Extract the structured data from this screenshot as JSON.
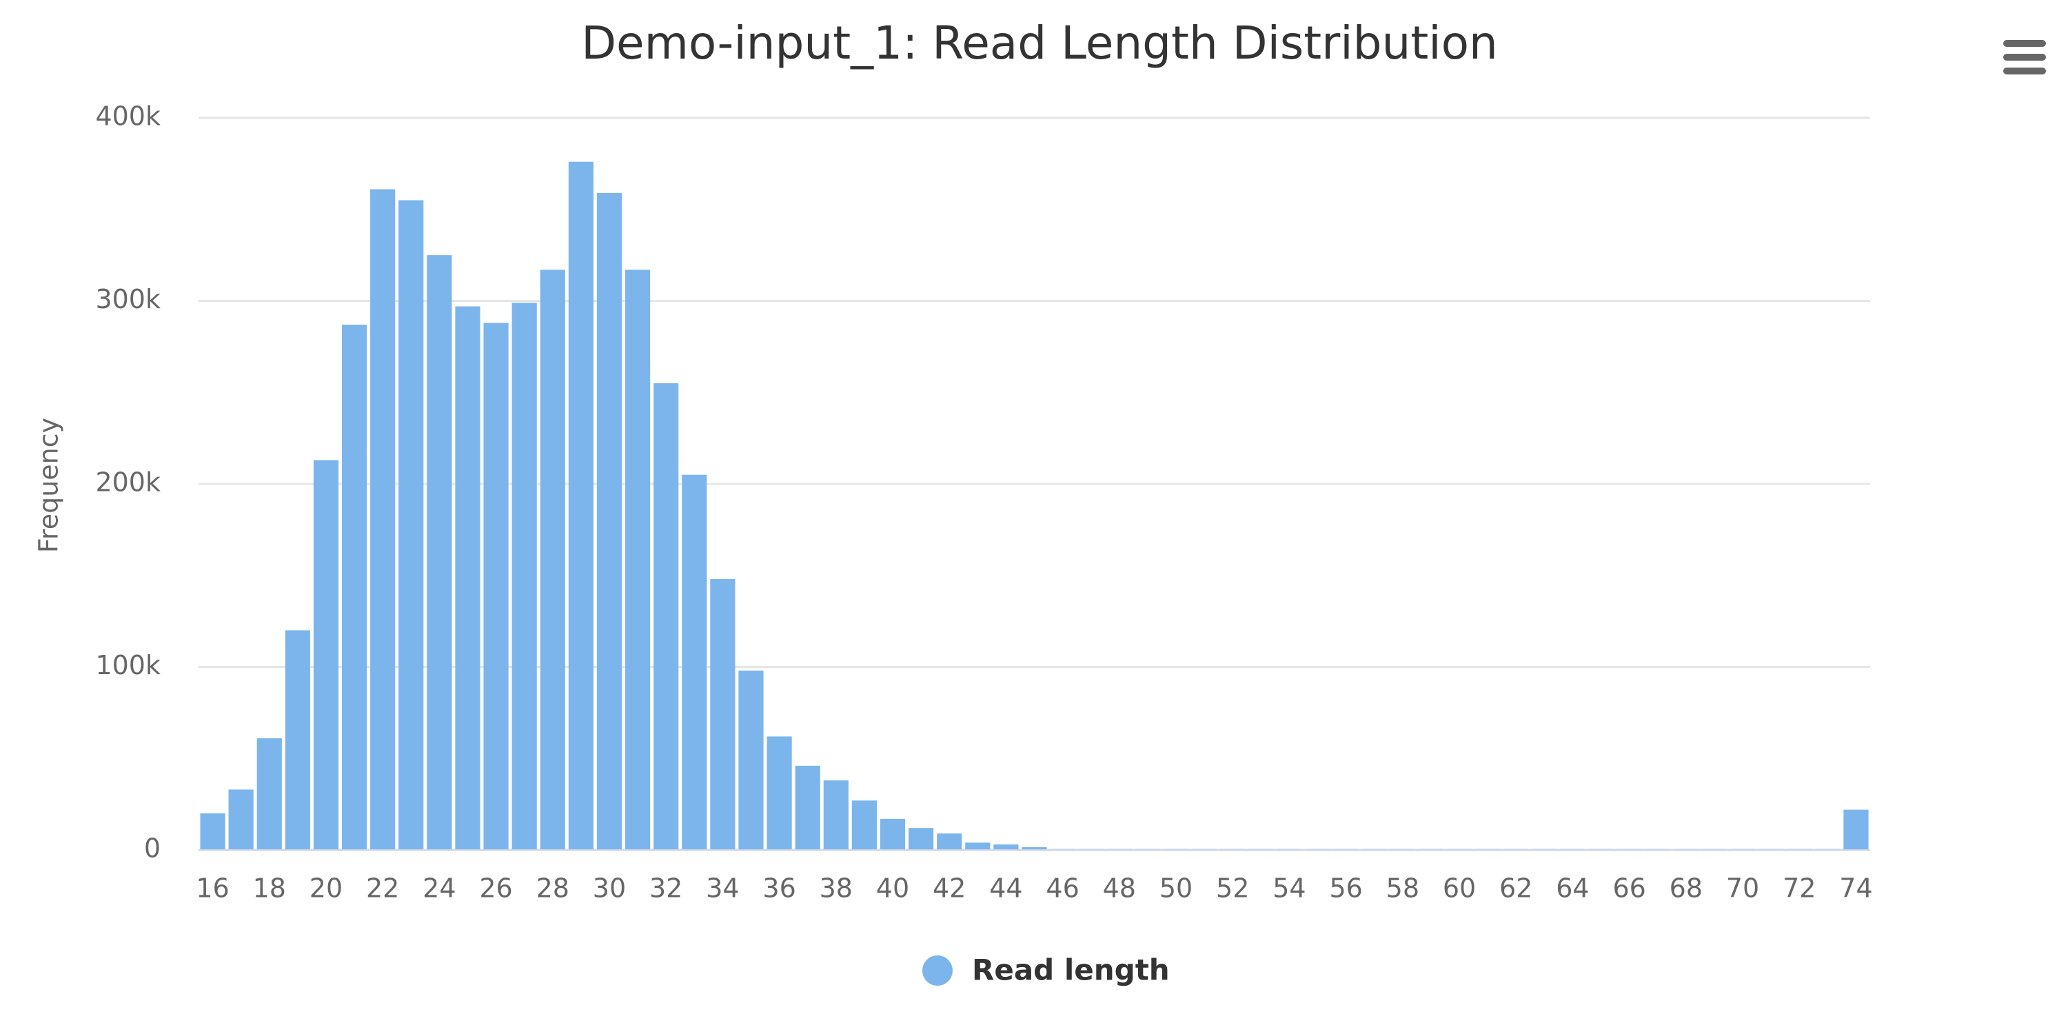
{
  "chart_data": {
    "type": "bar",
    "title": "Demo-input_1: Read Length Distribution",
    "y_label": "Frequency",
    "x": [
      16,
      17,
      18,
      19,
      20,
      21,
      22,
      23,
      24,
      25,
      26,
      27,
      28,
      29,
      30,
      31,
      32,
      33,
      34,
      35,
      36,
      37,
      38,
      39,
      40,
      41,
      42,
      43,
      44,
      45,
      46,
      47,
      48,
      49,
      50,
      51,
      52,
      53,
      54,
      55,
      56,
      57,
      58,
      59,
      60,
      61,
      62,
      63,
      64,
      65,
      66,
      67,
      68,
      69,
      70,
      71,
      72,
      73,
      74
    ],
    "series": [
      {
        "name": "Read length",
        "color": "#7cb5ec",
        "values": [
          20000,
          33000,
          61000,
          120000,
          213000,
          287000,
          361000,
          355000,
          325000,
          297000,
          288000,
          299000,
          317000,
          376000,
          359000,
          317000,
          255000,
          205000,
          148000,
          98000,
          62000,
          46000,
          38000,
          27000,
          17000,
          12000,
          9000,
          4000,
          3000,
          1500,
          500,
          500,
          500,
          500,
          500,
          500,
          500,
          500,
          500,
          500,
          500,
          500,
          500,
          500,
          500,
          500,
          500,
          500,
          500,
          500,
          500,
          500,
          500,
          500,
          500,
          500,
          500,
          500,
          22000
        ]
      }
    ],
    "xlim": [
      15.5,
      74.5
    ],
    "xticks": [
      16,
      18,
      20,
      22,
      24,
      26,
      28,
      30,
      32,
      34,
      36,
      38,
      40,
      42,
      44,
      46,
      48,
      50,
      52,
      54,
      56,
      58,
      60,
      62,
      64,
      66,
      68,
      70,
      72,
      74
    ],
    "ylim": [
      0,
      400000
    ],
    "yticks": [
      {
        "value": 0,
        "label": "0"
      },
      {
        "value": 100000,
        "label": "100k"
      },
      {
        "value": 200000,
        "label": "200k"
      },
      {
        "value": 300000,
        "label": "300k"
      },
      {
        "value": 400000,
        "label": "400k"
      }
    ],
    "grid": true
  }
}
